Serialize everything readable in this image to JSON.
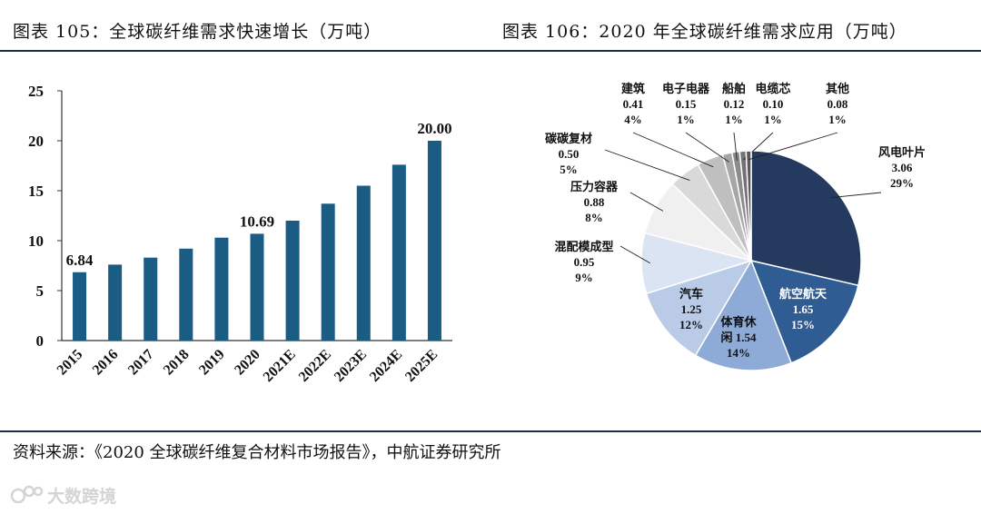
{
  "titles": {
    "left": "图表 105：全球碳纤维需求快速增长（万吨）",
    "right": "图表 106：2020 年全球碳纤维需求应用（万吨）"
  },
  "source": "资料来源：《2020 全球碳纤维复合材料市场报告》，中航证券研究所",
  "watermark": "大数跨境",
  "colors": {
    "bar": "#1a5c84",
    "rule": "#1f2d4a",
    "pie_stroke": "#ffffff",
    "text": "#111111"
  },
  "chart_data": [
    {
      "type": "bar",
      "title": "全球碳纤维需求快速增长（万吨）",
      "categories": [
        "2015",
        "2016",
        "2017",
        "2018",
        "2019",
        "2020",
        "2021E",
        "2022E",
        "2023E",
        "2024E",
        "2025E"
      ],
      "values": [
        6.84,
        7.6,
        8.3,
        9.2,
        10.3,
        10.69,
        12.0,
        13.7,
        15.5,
        17.6,
        20.0
      ],
      "data_labels": {
        "2015": "6.84",
        "2020": "10.69",
        "2025E": "20.00"
      },
      "ylim": [
        0,
        25
      ],
      "yticks": [
        0,
        5,
        10,
        15,
        20,
        25
      ],
      "xlabel": "",
      "ylabel": "",
      "grid": false
    },
    {
      "type": "pie",
      "title": "2020 年全球碳纤维需求应用（万吨）",
      "slices": [
        {
          "name": "风电叶片",
          "value": 3.06,
          "pct": "29%",
          "color": "#243a5e"
        },
        {
          "name": "航空航天",
          "value": 1.65,
          "pct": "15%",
          "color": "#2f5c93"
        },
        {
          "name": "体育休闲",
          "value": 1.54,
          "pct": "14%",
          "color": "#8eaad6"
        },
        {
          "name": "汽车",
          "value": 1.25,
          "pct": "12%",
          "color": "#b9cbe7"
        },
        {
          "name": "混配模成型",
          "value": 0.95,
          "pct": "9%",
          "color": "#dae4f2"
        },
        {
          "name": "压力容器",
          "value": 0.88,
          "pct": "8%",
          "color": "#f0f0f0"
        },
        {
          "name": "碳碳复材",
          "value": 0.5,
          "pct": "5%",
          "color": "#d9d9d9"
        },
        {
          "name": "建筑",
          "value": 0.41,
          "pct": "4%",
          "color": "#bfbfbf"
        },
        {
          "name": "电子电器",
          "value": 0.15,
          "pct": "1%",
          "color": "#a6a6a6"
        },
        {
          "name": "船舶",
          "value": 0.12,
          "pct": "1%",
          "color": "#8c8c8c"
        },
        {
          "name": "电缆芯",
          "value": 0.1,
          "pct": "1%",
          "color": "#737373"
        },
        {
          "name": "其他",
          "value": 0.08,
          "pct": "1%",
          "color": "#595959"
        }
      ]
    }
  ]
}
